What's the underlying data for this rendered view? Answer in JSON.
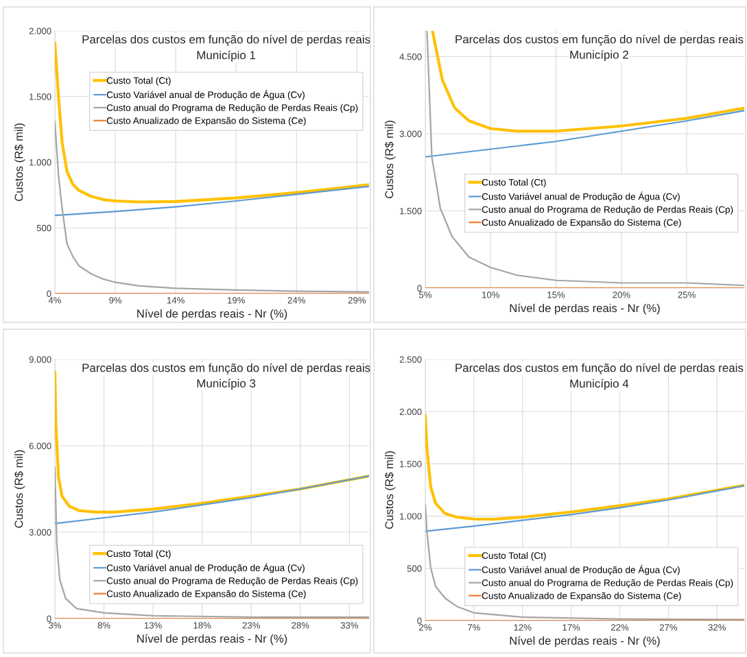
{
  "chart_data": [
    {
      "type": "line",
      "title": "Parcelas dos custos em função do nível de perdas reais",
      "subtitle": "Município 1",
      "xlabel": "Nível de perdas reais - Nr (%)",
      "ylabel": "Custos (R$ mil)",
      "xlim": [
        4,
        30
      ],
      "xticks": [
        {
          "value": 4,
          "label": "4%"
        },
        {
          "value": 9,
          "label": "9%"
        },
        {
          "value": 14,
          "label": "14%"
        },
        {
          "value": 19,
          "label": "19%"
        },
        {
          "value": 24,
          "label": "24%"
        },
        {
          "value": 29,
          "label": "29%"
        }
      ],
      "ylim": [
        0,
        2000
      ],
      "yticks": [
        0,
        500,
        {
          "value": 1000,
          "label": "1.000"
        },
        {
          "value": 1500,
          "label": "1.500"
        },
        {
          "value": 2000,
          "label": "2.000"
        }
      ],
      "grid": true,
      "legend": "top right",
      "series": [
        {
          "name": "Custo Total (Ct)",
          "color": "#ffc000",
          "x": [
            4,
            4.3,
            4.6,
            5,
            5.5,
            6,
            7,
            8,
            9,
            11,
            14,
            19,
            24,
            30
          ],
          "values": [
            1905,
            1500,
            1150,
            930,
            830,
            785,
            740,
            715,
            705,
            697,
            700,
            728,
            768,
            828
          ]
        },
        {
          "name": "Custo Variável anual de Produção de Água (Cv)",
          "color": "#5b9bd5",
          "x": [
            4,
            9,
            14,
            19,
            24,
            30
          ],
          "values": [
            595,
            625,
            660,
            705,
            755,
            815
          ]
        },
        {
          "name": "Custo anual do Programa de Redução de Perdas Reais (Cp)",
          "color": "#a5a5a5",
          "x": [
            4,
            4.3,
            4.6,
            5,
            5.5,
            6,
            7,
            8,
            9,
            11,
            14,
            19,
            24,
            30
          ],
          "values": [
            1310,
            900,
            650,
            380,
            280,
            210,
            150,
            110,
            85,
            58,
            40,
            27,
            18,
            12
          ]
        },
        {
          "name": "Custo Anualizado de Expansão do Sistema (Ce)",
          "color": "#ed7d31",
          "x": [
            4,
            30
          ],
          "values": [
            0,
            0
          ]
        }
      ]
    },
    {
      "type": "line",
      "title": "Parcelas dos custos em função do nível de perdas reais",
      "subtitle": "Município 2",
      "xlabel": "Nível de perdas reais - Nr (%)",
      "ylabel": "Custos (R$ mil)",
      "xlim": [
        5,
        29.4
      ],
      "xticks": [
        {
          "value": 5,
          "label": "5%"
        },
        {
          "value": 10,
          "label": "10%"
        },
        {
          "value": 15,
          "label": "15%"
        },
        {
          "value": 20,
          "label": "20%"
        },
        {
          "value": 25,
          "label": "25%"
        }
      ],
      "ylim": [
        0,
        5000
      ],
      "yticks": [
        0,
        {
          "value": 1500,
          "label": "1.500"
        },
        {
          "value": 3000,
          "label": "3.000"
        },
        {
          "value": 4500,
          "label": "4.500"
        }
      ],
      "grid": true,
      "legend": "right",
      "series": [
        {
          "name": "Custo Total (Ct)",
          "color": "#ffc000",
          "x": [
            5.55,
            6.3,
            7.25,
            8.35,
            10,
            12,
            13.5,
            15,
            20,
            25,
            29.4
          ],
          "values": [
            5000,
            4050,
            3500,
            3250,
            3100,
            3050,
            3050,
            3050,
            3150,
            3300,
            3500
          ]
        },
        {
          "name": "Custo Variável anual de Produção de Água (Cv)",
          "color": "#5b9bd5",
          "x": [
            5,
            10,
            15,
            20,
            25,
            29.4
          ],
          "values": [
            2550,
            2700,
            2850,
            3050,
            3250,
            3450
          ]
        },
        {
          "name": "Custo anual do Programa de Redução de Perdas Reais (Cp)",
          "color": "#a5a5a5",
          "x": [
            5.13,
            5.5,
            6.15,
            7.05,
            8.35,
            10,
            12,
            15,
            20,
            25,
            29.4
          ],
          "values": [
            5000,
            2550,
            1550,
            1000,
            600,
            400,
            250,
            150,
            100,
            100,
            50
          ]
        },
        {
          "name": "Custo Anualizado de Expansão do Sistema (Ce)",
          "color": "#ed7d31",
          "x": [
            5,
            29.4
          ],
          "values": [
            0,
            0
          ]
        }
      ]
    },
    {
      "type": "line",
      "title": "Parcelas dos custos em função do nível de perdas reais",
      "subtitle": "Município 3",
      "xlabel": "Nível de perdas reais - Nr (%)",
      "ylabel": "Custos (R$ mil)",
      "xlim": [
        3,
        35
      ],
      "xticks": [
        {
          "value": 3,
          "label": "3%"
        },
        {
          "value": 8,
          "label": "8%"
        },
        {
          "value": 13,
          "label": "13%"
        },
        {
          "value": 18,
          "label": "18%"
        },
        {
          "value": 23,
          "label": "23%"
        },
        {
          "value": 28,
          "label": "28%"
        },
        {
          "value": 33,
          "label": "33%"
        }
      ],
      "ylim": [
        0,
        9000
      ],
      "yticks": [
        0,
        {
          "value": 3000,
          "label": "3.000"
        },
        {
          "value": 6000,
          "label": "6.000"
        },
        {
          "value": 9000,
          "label": "9.000"
        }
      ],
      "grid": true,
      "legend": "bottom right",
      "series": [
        {
          "name": "Custo Total (Ct)",
          "color": "#ffc000",
          "x": [
            3,
            3.1,
            3.37,
            3.73,
            4.47,
            5.45,
            7.15,
            9.1,
            13,
            17.9,
            23,
            28,
            35
          ],
          "values": [
            8550,
            6750,
            4900,
            4250,
            3900,
            3750,
            3700,
            3700,
            3800,
            4000,
            4250,
            4500,
            4950
          ]
        },
        {
          "name": "Custo Variável anual de Produção de Água (Cv)",
          "color": "#5b9bd5",
          "x": [
            3,
            8,
            13,
            18,
            23,
            28,
            35
          ],
          "values": [
            3300,
            3500,
            3700,
            3950,
            4200,
            4500,
            4950
          ]
        },
        {
          "name": "Custo anual do Programa de Redução de Perdas Reais (Cp)",
          "color": "#a5a5a5",
          "x": [
            3,
            3.2,
            3.5,
            4.1,
            5.2,
            8,
            13,
            23,
            35
          ],
          "values": [
            5250,
            2600,
            1350,
            700,
            350,
            200,
            100,
            50,
            50
          ]
        },
        {
          "name": "Custo Anualizado de Expansão do Sistema (Ce)",
          "color": "#ed7d31",
          "x": [
            3,
            35
          ],
          "values": [
            0,
            0
          ]
        }
      ]
    },
    {
      "type": "line",
      "title": "Parcelas dos custos em função do nível de perdas reais",
      "subtitle": "Município 4",
      "xlabel": "Nível de perdas reais - Nr (%)",
      "ylabel": "Custos (R$ mil)",
      "xlim": [
        2,
        34.8
      ],
      "xticks": [
        {
          "value": 2,
          "label": "2%"
        },
        {
          "value": 7,
          "label": "7%"
        },
        {
          "value": 12,
          "label": "12%"
        },
        {
          "value": 17,
          "label": "17%"
        },
        {
          "value": 22,
          "label": "22%"
        },
        {
          "value": 27,
          "label": "27%"
        },
        {
          "value": 32,
          "label": "32%"
        }
      ],
      "ylim": [
        0,
        2500
      ],
      "yticks": [
        0,
        500,
        {
          "value": 1000,
          "label": "1.000"
        },
        {
          "value": 1500,
          "label": "1.500"
        },
        {
          "value": 2000,
          "label": "2.000"
        },
        {
          "value": 2500,
          "label": "2.500"
        }
      ],
      "grid": true,
      "legend": "bottom right",
      "series": [
        {
          "name": "Custo Total (Ct)",
          "color": "#ffc000",
          "x": [
            2,
            2.17,
            2.55,
            3.05,
            4.03,
            5.27,
            7,
            9,
            12,
            17,
            22,
            27,
            34.8
          ],
          "values": [
            1965,
            1650,
            1285,
            1125,
            1025,
            990,
            973,
            970,
            990,
            1040,
            1100,
            1165,
            1295
          ]
        },
        {
          "name": "Custo Variável anual de Produção de Água (Cv)",
          "color": "#5b9bd5",
          "x": [
            2,
            7,
            12,
            17,
            22,
            27,
            34.8
          ],
          "values": [
            855,
            905,
            960,
            1015,
            1080,
            1155,
            1290
          ]
        },
        {
          "name": "Custo anual do Programa de Redução de Perdas Reais (Cp)",
          "color": "#a5a5a5",
          "x": [
            2,
            2.17,
            2.55,
            3.05,
            4.03,
            5.27,
            7,
            12,
            22,
            34.8
          ],
          "values": [
            1110,
            850,
            510,
            330,
            215,
            135,
            75,
            34,
            16,
            10
          ]
        },
        {
          "name": "Custo Anualizado de Expansão do Sistema (Ce)",
          "color": "#ed7d31",
          "x": [
            2,
            34.8
          ],
          "values": [
            0,
            0
          ]
        }
      ]
    }
  ]
}
